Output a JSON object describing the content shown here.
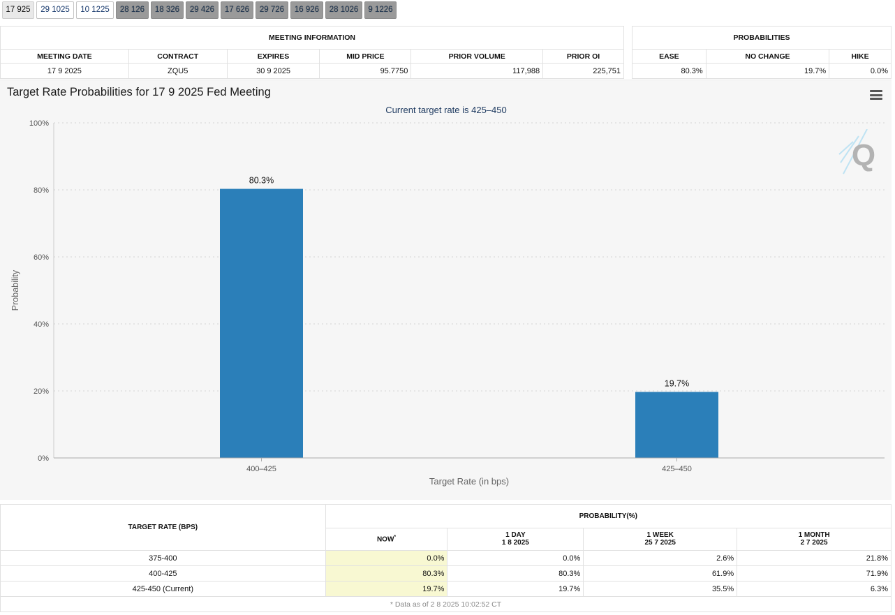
{
  "tabs": [
    {
      "label": "17 925",
      "state": "active"
    },
    {
      "label": "29 1025",
      "state": "light"
    },
    {
      "label": "10 1225",
      "state": "light"
    },
    {
      "label": "28 126",
      "state": "dark"
    },
    {
      "label": "18 326",
      "state": "dark"
    },
    {
      "label": "29 426",
      "state": "dark"
    },
    {
      "label": "17 626",
      "state": "dark"
    },
    {
      "label": "29 726",
      "state": "dark"
    },
    {
      "label": "16 926",
      "state": "dark"
    },
    {
      "label": "28 1026",
      "state": "dark"
    },
    {
      "label": "9 1226",
      "state": "dark"
    }
  ],
  "meeting_info": {
    "title": "MEETING INFORMATION",
    "headers": [
      "MEETING DATE",
      "CONTRACT",
      "EXPIRES",
      "MID PRICE",
      "PRIOR VOLUME",
      "PRIOR OI"
    ],
    "row": [
      "17 9 2025",
      "ZQU5",
      "30 9 2025",
      "95.7750",
      "117,988",
      "225,751"
    ]
  },
  "probabilities": {
    "title": "PROBABILITIES",
    "headers": [
      "EASE",
      "NO CHANGE",
      "HIKE"
    ],
    "row": [
      "80.3%",
      "19.7%",
      "0.0%"
    ]
  },
  "chart_title": "Target Rate Probabilities for 17 9 2025 Fed Meeting",
  "menu_icon": "hamburger-menu-icon",
  "watermark_icon": "q-logo-icon",
  "chart_data": {
    "type": "bar",
    "subtitle": "Current target rate is 425–450",
    "categories": [
      "400–425",
      "425–450"
    ],
    "values": [
      80.3,
      19.7
    ],
    "data_labels": [
      "80.3%",
      "19.7%"
    ],
    "xlabel": "Target Rate (in bps)",
    "ylabel": "Probability",
    "ylim": [
      0,
      100
    ],
    "yticks": [
      "0%",
      "20%",
      "40%",
      "60%",
      "80%",
      "100%"
    ],
    "ytick_values": [
      0,
      20,
      40,
      60,
      80,
      100
    ],
    "grid": true,
    "bar_color": "#2b7fb9"
  },
  "prob_table": {
    "target_header": "TARGET RATE (BPS)",
    "prob_header": "PROBABILITY(%)",
    "cols": [
      {
        "line1": "NOW",
        "line2": ""
      },
      {
        "line1": "1 DAY",
        "line2": "1 8 2025"
      },
      {
        "line1": "1 WEEK",
        "line2": "25 7 2025"
      },
      {
        "line1": "1 MONTH",
        "line2": "2 7 2025"
      }
    ],
    "now_mark": "*",
    "rows": [
      {
        "rate": "375-400",
        "values": [
          "0.0%",
          "0.0%",
          "2.6%",
          "21.8%"
        ]
      },
      {
        "rate": "400-425",
        "values": [
          "80.3%",
          "80.3%",
          "61.9%",
          "71.9%"
        ]
      },
      {
        "rate": "425-450 (Current)",
        "values": [
          "19.7%",
          "19.7%",
          "35.5%",
          "6.3%"
        ]
      }
    ],
    "footnote": "* Data as of 2 8 2025 10:02:52 CT"
  }
}
